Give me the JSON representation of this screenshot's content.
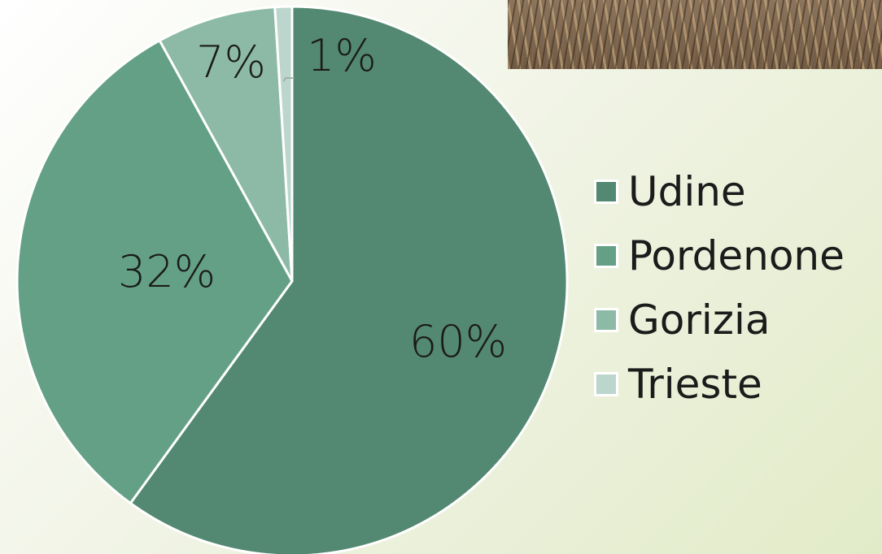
{
  "chart_data": {
    "type": "pie",
    "categories": [
      "Udine",
      "Pordenone",
      "Gorizia",
      "Trieste"
    ],
    "values": [
      60,
      32,
      7,
      1
    ],
    "labels": [
      "60%",
      "32%",
      "7%",
      "1%"
    ],
    "colors": [
      "#538872",
      "#63a086",
      "#8dbaa6",
      "#bdd6cd"
    ],
    "legend_position": "right"
  },
  "photo": {
    "subject": "wheat field photo"
  }
}
